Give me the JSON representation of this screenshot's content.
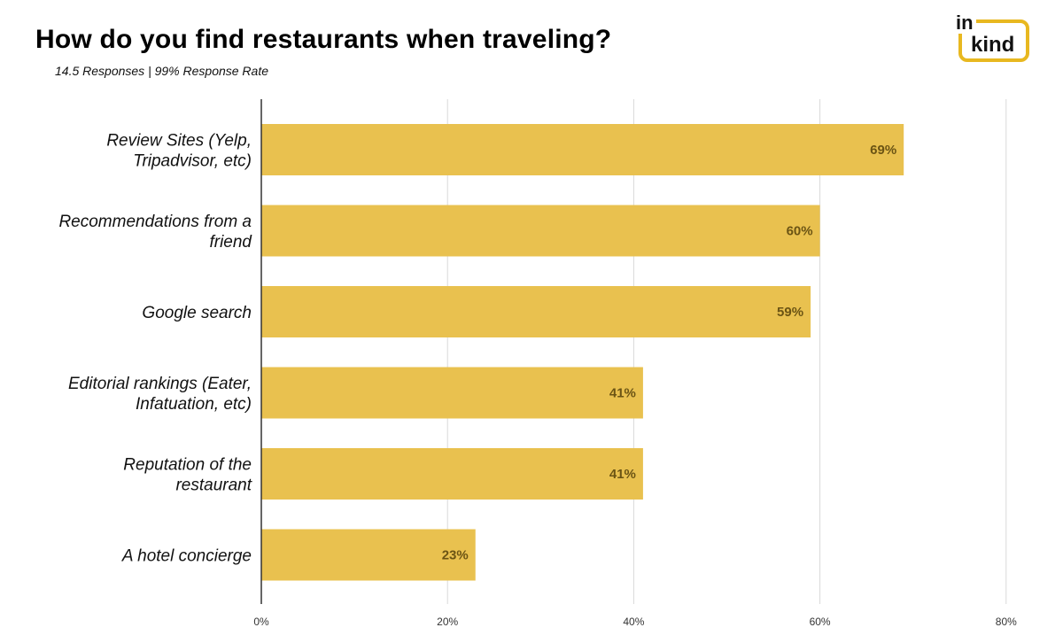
{
  "header": {
    "title": "How do you find restaurants when traveling?",
    "subtitle": "14.5 Responses | 99% Response Rate"
  },
  "logo": {
    "line1": "in",
    "line2": "kind"
  },
  "colors": {
    "bar": "#E9C14F",
    "value_label": "#6B5414",
    "grid": "#D9D9D9",
    "axis": "#333333",
    "logo_accent": "#E8B820"
  },
  "chart_data": {
    "type": "bar",
    "orientation": "horizontal",
    "categories": [
      [
        "Review Sites (Yelp,",
        "Tripadvisor, etc)"
      ],
      [
        "Recommendations from a",
        "friend"
      ],
      [
        "Google search"
      ],
      [
        "Editorial rankings (Eater,",
        "Infatuation, etc)"
      ],
      [
        "Reputation of the",
        "restaurant"
      ],
      [
        "A hotel concierge"
      ]
    ],
    "values": [
      69,
      60,
      59,
      41,
      41,
      23
    ],
    "value_labels": [
      "69%",
      "60%",
      "59%",
      "41%",
      "41%",
      "23%"
    ],
    "xlim": [
      0,
      80
    ],
    "xticks": [
      0,
      20,
      40,
      60,
      80
    ],
    "xtick_labels": [
      "0%",
      "20%",
      "40%",
      "60%",
      "80%"
    ],
    "grid": true,
    "legend": "none"
  }
}
